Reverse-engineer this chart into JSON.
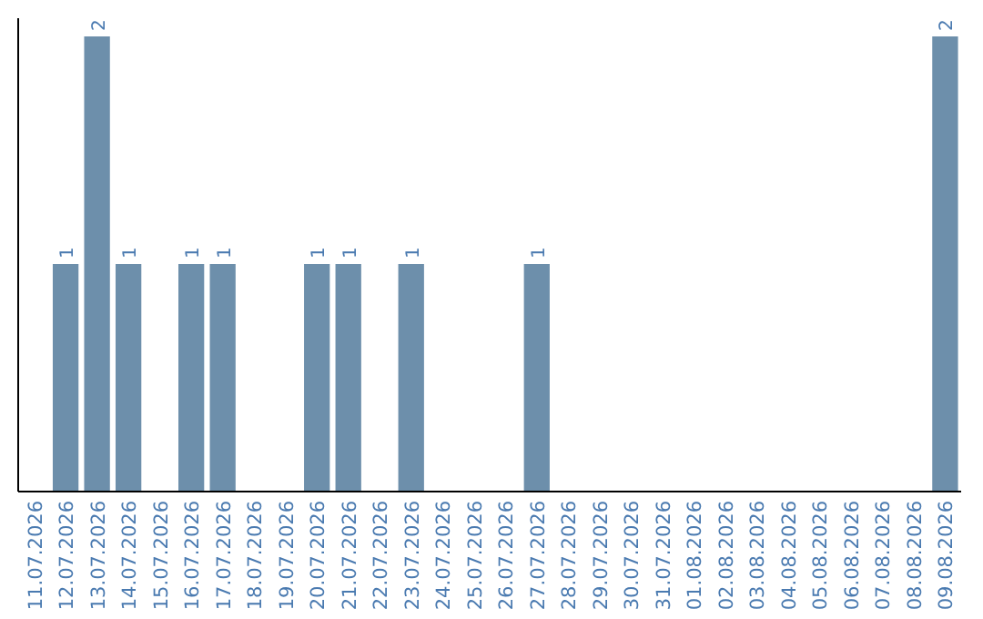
{
  "chart_data": {
    "type": "bar",
    "categories": [
      "11.07.2026",
      "12.07.2026",
      "13.07.2026",
      "14.07.2026",
      "15.07.2026",
      "16.07.2026",
      "17.07.2026",
      "18.07.2026",
      "19.07.2026",
      "20.07.2026",
      "21.07.2026",
      "22.07.2026",
      "23.07.2026",
      "24.07.2026",
      "25.07.2026",
      "26.07.2026",
      "27.07.2026",
      "28.07.2026",
      "29.07.2026",
      "30.07.2026",
      "31.07.2026",
      "01.08.2026",
      "02.08.2026",
      "03.08.2026",
      "04.08.2026",
      "05.08.2026",
      "06.08.2026",
      "07.08.2026",
      "08.08.2026",
      "09.08.2026"
    ],
    "values": [
      0,
      1,
      2,
      1,
      0,
      1,
      1,
      0,
      0,
      1,
      1,
      0,
      1,
      0,
      0,
      0,
      1,
      0,
      0,
      0,
      0,
      0,
      0,
      0,
      0,
      0,
      0,
      0,
      0,
      2
    ],
    "value_labels": [
      null,
      "1",
      "2",
      "1",
      null,
      "1",
      "1",
      null,
      null,
      "1",
      "1",
      null,
      "1",
      null,
      null,
      null,
      "1",
      null,
      null,
      null,
      null,
      null,
      null,
      null,
      null,
      null,
      null,
      null,
      null,
      "2"
    ],
    "color": "#6d8fab",
    "ylim": [
      0,
      2.08
    ],
    "tick_labels": "x"
  }
}
